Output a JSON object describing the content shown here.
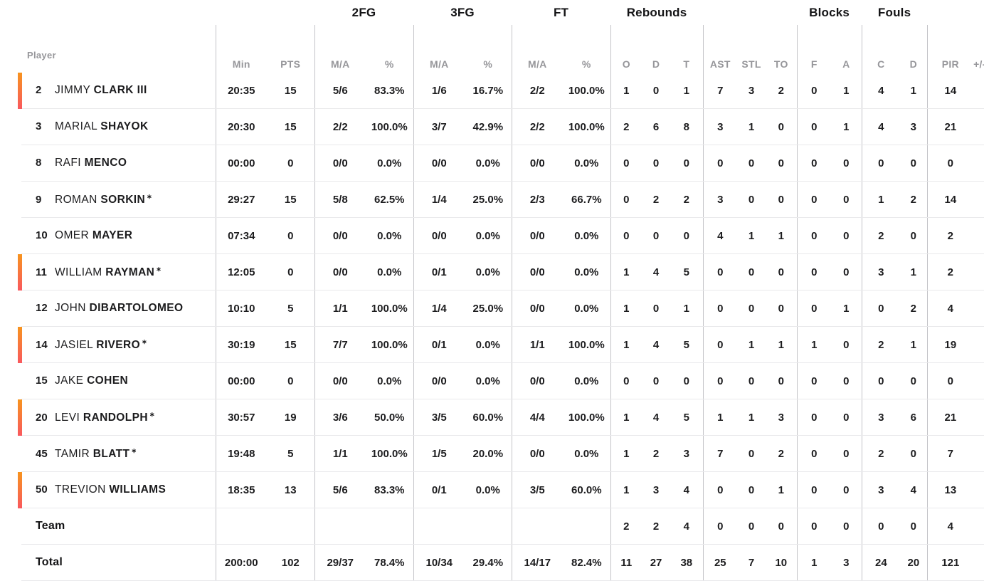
{
  "marker_char": "∗",
  "colors": {
    "accent_bar_top": "#F7941E",
    "accent_bar_bottom": "#F9585E",
    "header_text": "#96969a",
    "body_text": "#1c1c1e",
    "vertical_divider": "#c3c3c7",
    "row_divider": "#e9e9eb"
  },
  "header": {
    "player_label": "Player",
    "groups": {
      "fg2": "2FG",
      "fg3": "3FG",
      "ft": "FT",
      "rebounds": "Rebounds",
      "blocks": "Blocks",
      "fouls": "Fouls"
    },
    "sub": {
      "min": "Min",
      "pts": "PTS",
      "ma": "M/A",
      "pct": "%",
      "o": "O",
      "d": "D",
      "t": "T",
      "ast": "AST",
      "stl": "STL",
      "to": "TO",
      "f": "F",
      "a": "A",
      "c": "C",
      "d2": "D",
      "pir": "PIR",
      "plus_minus": "+/-"
    }
  },
  "rows": [
    {
      "num": "2",
      "first": "JIMMY",
      "last": "CLARK III",
      "starter": true,
      "marker": false,
      "min": "20:35",
      "pts": "15",
      "fg2_ma": "5/6",
      "fg2_pct": "83.3%",
      "fg3_ma": "1/6",
      "fg3_pct": "16.7%",
      "ft_ma": "2/2",
      "ft_pct": "100.0%",
      "reb_o": "1",
      "reb_d": "0",
      "reb_t": "1",
      "ast": "7",
      "stl": "3",
      "to": "2",
      "blk_f": "0",
      "blk_a": "1",
      "foul_c": "4",
      "foul_d": "1",
      "pir": "14",
      "pm": ""
    },
    {
      "num": "3",
      "first": "MARIAL",
      "last": "SHAYOK",
      "starter": false,
      "marker": false,
      "min": "20:30",
      "pts": "15",
      "fg2_ma": "2/2",
      "fg2_pct": "100.0%",
      "fg3_ma": "3/7",
      "fg3_pct": "42.9%",
      "ft_ma": "2/2",
      "ft_pct": "100.0%",
      "reb_o": "2",
      "reb_d": "6",
      "reb_t": "8",
      "ast": "3",
      "stl": "1",
      "to": "0",
      "blk_f": "0",
      "blk_a": "1",
      "foul_c": "4",
      "foul_d": "3",
      "pir": "21",
      "pm": ""
    },
    {
      "num": "8",
      "first": "RAFI",
      "last": "MENCO",
      "starter": false,
      "marker": false,
      "min": "00:00",
      "pts": "0",
      "fg2_ma": "0/0",
      "fg2_pct": "0.0%",
      "fg3_ma": "0/0",
      "fg3_pct": "0.0%",
      "ft_ma": "0/0",
      "ft_pct": "0.0%",
      "reb_o": "0",
      "reb_d": "0",
      "reb_t": "0",
      "ast": "0",
      "stl": "0",
      "to": "0",
      "blk_f": "0",
      "blk_a": "0",
      "foul_c": "0",
      "foul_d": "0",
      "pir": "0",
      "pm": ""
    },
    {
      "num": "9",
      "first": "ROMAN",
      "last": "SORKIN",
      "starter": false,
      "marker": true,
      "min": "29:27",
      "pts": "15",
      "fg2_ma": "5/8",
      "fg2_pct": "62.5%",
      "fg3_ma": "1/4",
      "fg3_pct": "25.0%",
      "ft_ma": "2/3",
      "ft_pct": "66.7%",
      "reb_o": "0",
      "reb_d": "2",
      "reb_t": "2",
      "ast": "3",
      "stl": "0",
      "to": "0",
      "blk_f": "0",
      "blk_a": "0",
      "foul_c": "1",
      "foul_d": "2",
      "pir": "14",
      "pm": ""
    },
    {
      "num": "10",
      "first": "OMER",
      "last": "MAYER",
      "starter": false,
      "marker": false,
      "min": "07:34",
      "pts": "0",
      "fg2_ma": "0/0",
      "fg2_pct": "0.0%",
      "fg3_ma": "0/0",
      "fg3_pct": "0.0%",
      "ft_ma": "0/0",
      "ft_pct": "0.0%",
      "reb_o": "0",
      "reb_d": "0",
      "reb_t": "0",
      "ast": "4",
      "stl": "1",
      "to": "1",
      "blk_f": "0",
      "blk_a": "0",
      "foul_c": "2",
      "foul_d": "0",
      "pir": "2",
      "pm": ""
    },
    {
      "num": "11",
      "first": "WILLIAM",
      "last": "RAYMAN",
      "starter": true,
      "marker": true,
      "min": "12:05",
      "pts": "0",
      "fg2_ma": "0/0",
      "fg2_pct": "0.0%",
      "fg3_ma": "0/1",
      "fg3_pct": "0.0%",
      "ft_ma": "0/0",
      "ft_pct": "0.0%",
      "reb_o": "1",
      "reb_d": "4",
      "reb_t": "5",
      "ast": "0",
      "stl": "0",
      "to": "0",
      "blk_f": "0",
      "blk_a": "0",
      "foul_c": "3",
      "foul_d": "1",
      "pir": "2",
      "pm": ""
    },
    {
      "num": "12",
      "first": "JOHN",
      "last": "DIBARTOLOMEO",
      "starter": false,
      "marker": false,
      "min": "10:10",
      "pts": "5",
      "fg2_ma": "1/1",
      "fg2_pct": "100.0%",
      "fg3_ma": "1/4",
      "fg3_pct": "25.0%",
      "ft_ma": "0/0",
      "ft_pct": "0.0%",
      "reb_o": "1",
      "reb_d": "0",
      "reb_t": "1",
      "ast": "0",
      "stl": "0",
      "to": "0",
      "blk_f": "0",
      "blk_a": "1",
      "foul_c": "0",
      "foul_d": "2",
      "pir": "4",
      "pm": ""
    },
    {
      "num": "14",
      "first": "JASIEL",
      "last": "RIVERO",
      "starter": true,
      "marker": true,
      "min": "30:19",
      "pts": "15",
      "fg2_ma": "7/7",
      "fg2_pct": "100.0%",
      "fg3_ma": "0/1",
      "fg3_pct": "0.0%",
      "ft_ma": "1/1",
      "ft_pct": "100.0%",
      "reb_o": "1",
      "reb_d": "4",
      "reb_t": "5",
      "ast": "0",
      "stl": "1",
      "to": "1",
      "blk_f": "1",
      "blk_a": "0",
      "foul_c": "2",
      "foul_d": "1",
      "pir": "19",
      "pm": ""
    },
    {
      "num": "15",
      "first": "JAKE",
      "last": "COHEN",
      "starter": false,
      "marker": false,
      "min": "00:00",
      "pts": "0",
      "fg2_ma": "0/0",
      "fg2_pct": "0.0%",
      "fg3_ma": "0/0",
      "fg3_pct": "0.0%",
      "ft_ma": "0/0",
      "ft_pct": "0.0%",
      "reb_o": "0",
      "reb_d": "0",
      "reb_t": "0",
      "ast": "0",
      "stl": "0",
      "to": "0",
      "blk_f": "0",
      "blk_a": "0",
      "foul_c": "0",
      "foul_d": "0",
      "pir": "0",
      "pm": ""
    },
    {
      "num": "20",
      "first": "LEVI",
      "last": "RANDOLPH",
      "starter": true,
      "marker": true,
      "min": "30:57",
      "pts": "19",
      "fg2_ma": "3/6",
      "fg2_pct": "50.0%",
      "fg3_ma": "3/5",
      "fg3_pct": "60.0%",
      "ft_ma": "4/4",
      "ft_pct": "100.0%",
      "reb_o": "1",
      "reb_d": "4",
      "reb_t": "5",
      "ast": "1",
      "stl": "1",
      "to": "3",
      "blk_f": "0",
      "blk_a": "0",
      "foul_c": "3",
      "foul_d": "6",
      "pir": "21",
      "pm": ""
    },
    {
      "num": "45",
      "first": "TAMIR",
      "last": "BLATT",
      "starter": false,
      "marker": true,
      "min": "19:48",
      "pts": "5",
      "fg2_ma": "1/1",
      "fg2_pct": "100.0%",
      "fg3_ma": "1/5",
      "fg3_pct": "20.0%",
      "ft_ma": "0/0",
      "ft_pct": "0.0%",
      "reb_o": "1",
      "reb_d": "2",
      "reb_t": "3",
      "ast": "7",
      "stl": "0",
      "to": "2",
      "blk_f": "0",
      "blk_a": "0",
      "foul_c": "2",
      "foul_d": "0",
      "pir": "7",
      "pm": ""
    },
    {
      "num": "50",
      "first": "TREVION",
      "last": "WILLIAMS",
      "starter": true,
      "marker": false,
      "min": "18:35",
      "pts": "13",
      "fg2_ma": "5/6",
      "fg2_pct": "83.3%",
      "fg3_ma": "0/1",
      "fg3_pct": "0.0%",
      "ft_ma": "3/5",
      "ft_pct": "60.0%",
      "reb_o": "1",
      "reb_d": "3",
      "reb_t": "4",
      "ast": "0",
      "stl": "0",
      "to": "1",
      "blk_f": "0",
      "blk_a": "0",
      "foul_c": "3",
      "foul_d": "4",
      "pir": "13",
      "pm": ""
    }
  ],
  "team": {
    "label": "Team",
    "min": "",
    "pts": "",
    "fg2_ma": "",
    "fg2_pct": "",
    "fg3_ma": "",
    "fg3_pct": "",
    "ft_ma": "",
    "ft_pct": "",
    "reb_o": "2",
    "reb_d": "2",
    "reb_t": "4",
    "ast": "0",
    "stl": "0",
    "to": "0",
    "blk_f": "0",
    "blk_a": "0",
    "foul_c": "0",
    "foul_d": "0",
    "pir": "4",
    "pm": ""
  },
  "total": {
    "label": "Total",
    "min": "200:00",
    "pts": "102",
    "fg2_ma": "29/37",
    "fg2_pct": "78.4%",
    "fg3_ma": "10/34",
    "fg3_pct": "29.4%",
    "ft_ma": "14/17",
    "ft_pct": "82.4%",
    "reb_o": "11",
    "reb_d": "27",
    "reb_t": "38",
    "ast": "25",
    "stl": "7",
    "to": "10",
    "blk_f": "1",
    "blk_a": "3",
    "foul_c": "24",
    "foul_d": "20",
    "pir": "121",
    "pm": ""
  }
}
